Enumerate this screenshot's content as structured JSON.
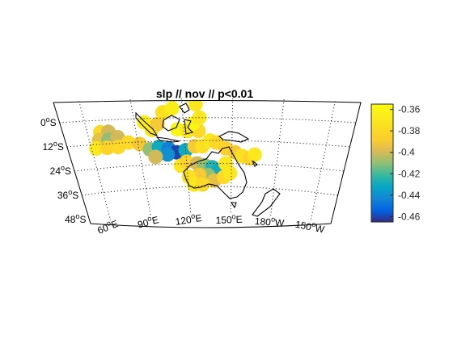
{
  "chart_data": {
    "type": "heatmap",
    "title": "slp // nov // p<0.01",
    "projection": "map",
    "grid": true,
    "lat_ticks": [
      {
        "value": 0,
        "num": "0",
        "hemi": "S"
      },
      {
        "value": -12,
        "num": "12",
        "hemi": "S"
      },
      {
        "value": -24,
        "num": "24",
        "hemi": "S"
      },
      {
        "value": -36,
        "num": "36",
        "hemi": "S"
      },
      {
        "value": -48,
        "num": "48",
        "hemi": "S"
      }
    ],
    "lon_ticks": [
      {
        "value": 60,
        "num": "60",
        "hemi": "E"
      },
      {
        "value": 90,
        "num": "90",
        "hemi": "E"
      },
      {
        "value": 120,
        "num": "120",
        "hemi": "E"
      },
      {
        "value": 150,
        "num": "150",
        "hemi": "E"
      },
      {
        "value": 180,
        "num": "180",
        "hemi": "W"
      },
      {
        "value": 210,
        "num": "150",
        "hemi": "W"
      }
    ],
    "colorbar": {
      "range": [
        -0.465,
        -0.355
      ],
      "ticks": [
        "-0.36",
        "-0.38",
        "-0.4",
        "-0.42",
        "-0.44",
        "-0.46"
      ],
      "tick_values": [
        -0.36,
        -0.38,
        -0.4,
        -0.42,
        -0.44,
        -0.46
      ]
    },
    "field_points": [
      {
        "lon": 68,
        "lat": -6,
        "v": -0.38
      },
      {
        "lon": 73,
        "lat": -6,
        "v": -0.4
      },
      {
        "lon": 66,
        "lat": -10,
        "v": -0.395
      },
      {
        "lon": 72,
        "lat": -10,
        "v": -0.41
      },
      {
        "lon": 78,
        "lat": -9,
        "v": -0.4
      },
      {
        "lon": 63,
        "lat": -14,
        "v": -0.37
      },
      {
        "lon": 70,
        "lat": -14,
        "v": -0.385
      },
      {
        "lon": 77,
        "lat": -14,
        "v": -0.38
      },
      {
        "lon": 84,
        "lat": -12,
        "v": -0.38
      },
      {
        "lon": 91,
        "lat": -13,
        "v": -0.39
      },
      {
        "lon": 97,
        "lat": -16,
        "v": -0.41
      },
      {
        "lon": 103,
        "lat": -15,
        "v": -0.43
      },
      {
        "lon": 109,
        "lat": -16,
        "v": -0.445
      },
      {
        "lon": 114,
        "lat": -18,
        "v": -0.46
      },
      {
        "lon": 108,
        "lat": -19,
        "v": -0.44
      },
      {
        "lon": 100,
        "lat": -20,
        "v": -0.4
      },
      {
        "lon": 120,
        "lat": -17,
        "v": -0.43
      },
      {
        "lon": 126,
        "lat": -15,
        "v": -0.39
      },
      {
        "lon": 131,
        "lat": -15,
        "v": -0.375
      },
      {
        "lon": 136,
        "lat": -12,
        "v": -0.37
      },
      {
        "lon": 140,
        "lat": -13,
        "v": -0.38
      },
      {
        "lon": 146,
        "lat": -16,
        "v": -0.385
      },
      {
        "lon": 152,
        "lat": -18,
        "v": -0.39
      },
      {
        "lon": 157,
        "lat": -20,
        "v": -0.375
      },
      {
        "lon": 162,
        "lat": -21,
        "v": -0.385
      },
      {
        "lon": 165,
        "lat": -19,
        "v": -0.37
      },
      {
        "lon": 100,
        "lat": -6,
        "v": -0.37
      },
      {
        "lon": 96,
        "lat": -2,
        "v": -0.365
      },
      {
        "lon": 104,
        "lat": -3,
        "v": -0.39
      },
      {
        "lon": 108,
        "lat": 3,
        "v": -0.375
      },
      {
        "lon": 116,
        "lat": -6,
        "v": -0.36
      },
      {
        "lon": 122,
        "lat": -7,
        "v": -0.37
      },
      {
        "lon": 129,
        "lat": -7,
        "v": -0.38
      },
      {
        "lon": 126,
        "lat": -3,
        "v": -0.36
      },
      {
        "lon": 130,
        "lat": 0,
        "v": -0.37
      },
      {
        "lon": 128,
        "lat": 7,
        "v": -0.37
      },
      {
        "lon": 124,
        "lat": 12,
        "v": -0.37
      },
      {
        "lon": 114,
        "lat": 5,
        "v": -0.365
      },
      {
        "lon": 116,
        "lat": -25,
        "v": -0.37
      },
      {
        "lon": 120,
        "lat": -23,
        "v": -0.385
      },
      {
        "lon": 127,
        "lat": -24,
        "v": -0.4
      },
      {
        "lon": 132,
        "lat": -25,
        "v": -0.41
      },
      {
        "lon": 137,
        "lat": -26,
        "v": -0.425
      },
      {
        "lon": 141,
        "lat": -28,
        "v": -0.43
      },
      {
        "lon": 134,
        "lat": -30,
        "v": -0.41
      },
      {
        "lon": 128,
        "lat": -30,
        "v": -0.39
      },
      {
        "lon": 121,
        "lat": -31,
        "v": -0.375
      },
      {
        "lon": 138,
        "lat": -33,
        "v": -0.395
      },
      {
        "lon": 145,
        "lat": -31,
        "v": -0.38
      },
      {
        "lon": 149,
        "lat": -29,
        "v": -0.37
      },
      {
        "lon": 146,
        "lat": -24,
        "v": -0.37
      },
      {
        "lon": 124,
        "lat": -35,
        "v": -0.37
      },
      {
        "lon": 130,
        "lat": -35,
        "v": -0.38
      }
    ]
  }
}
